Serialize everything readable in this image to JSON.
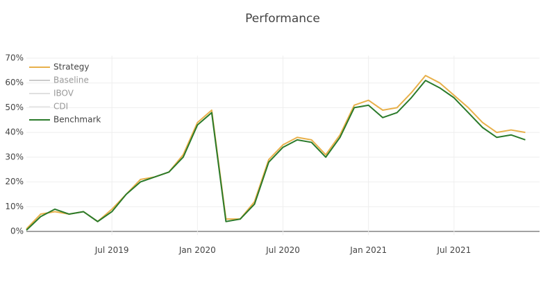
{
  "chart_data": {
    "type": "line",
    "title": "Performance",
    "x": [
      "2019-01",
      "2019-02",
      "2019-03",
      "2019-04",
      "2019-05",
      "2019-06",
      "2019-07",
      "2019-08",
      "2019-09",
      "2019-10",
      "2019-11",
      "2019-12",
      "2020-01",
      "2020-02",
      "2020-03",
      "2020-04",
      "2020-05",
      "2020-06",
      "2020-07",
      "2020-08",
      "2020-09",
      "2020-10",
      "2020-11",
      "2020-12",
      "2021-01",
      "2021-02",
      "2021-03",
      "2021-04",
      "2021-05",
      "2021-06",
      "2021-07",
      "2021-08",
      "2021-09",
      "2021-10",
      "2021-11",
      "2021-12"
    ],
    "series": [
      {
        "name": "Strategy",
        "color": "#e8b04a",
        "visible": true,
        "values": [
          1,
          7,
          8,
          7,
          8,
          4,
          9,
          15,
          21,
          22,
          24,
          31,
          44,
          49,
          5,
          5,
          12,
          29,
          35,
          38,
          37,
          31,
          39,
          51,
          53,
          49,
          50,
          56,
          63,
          60,
          55,
          50,
          44,
          40,
          41,
          40
        ]
      },
      {
        "name": "Baseline",
        "color": "#aaaaaa",
        "visible": false
      },
      {
        "name": "IBOV",
        "color": "#cccccc",
        "visible": false
      },
      {
        "name": "CDI",
        "color": "#dddddd",
        "visible": false
      },
      {
        "name": "Benchmark",
        "color": "#2a7a2a",
        "visible": true,
        "values": [
          0.5,
          6,
          9,
          7,
          8,
          4,
          8,
          15,
          20,
          22,
          24,
          30,
          43,
          48,
          4,
          5,
          11,
          28,
          34,
          37,
          36,
          30,
          38,
          50,
          51,
          46,
          48,
          54,
          61,
          58,
          54,
          48,
          42,
          38,
          39,
          37
        ]
      }
    ],
    "xlim": [
      "2019-01",
      "2021-12"
    ],
    "xticks": [
      {
        "value": "2019-07",
        "label": "Jul 2019"
      },
      {
        "value": "2020-01",
        "label": "Jan 2020"
      },
      {
        "value": "2020-07",
        "label": "Jul 2020"
      },
      {
        "value": "2021-01",
        "label": "Jan 2021"
      },
      {
        "value": "2021-07",
        "label": "Jul 2021"
      }
    ],
    "ylim": [
      -1.5,
      71
    ],
    "yticks": [
      {
        "value": 0,
        "label": "0%"
      },
      {
        "value": 10,
        "label": "10%"
      },
      {
        "value": 20,
        "label": "20%"
      },
      {
        "value": 30,
        "label": "30%"
      },
      {
        "value": 40,
        "label": "40%"
      },
      {
        "value": 50,
        "label": "50%"
      },
      {
        "value": 60,
        "label": "60%"
      },
      {
        "value": 70,
        "label": "70%"
      }
    ],
    "grid": true,
    "legend": "top-left"
  }
}
